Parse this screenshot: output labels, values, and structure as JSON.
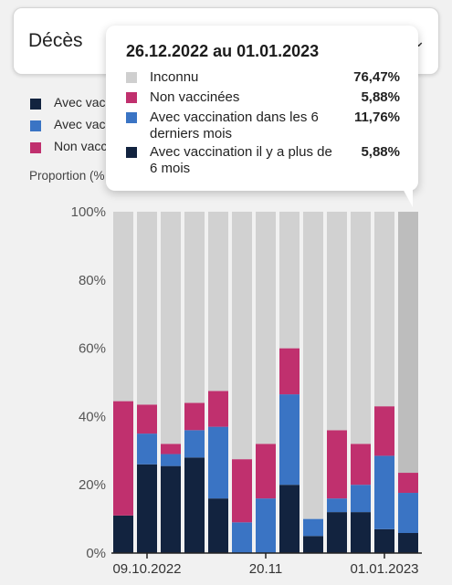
{
  "header": {
    "title": "Décès"
  },
  "legend": {
    "items": [
      {
        "label": "Avec vacci",
        "color": "#12233f"
      },
      {
        "label": "Avec vac",
        "color": "#3a74c4"
      },
      {
        "label": "Non vacc",
        "color": "#c0306e"
      }
    ],
    "proportion_label": "Proportion (%"
  },
  "tooltip": {
    "title": "26.12.2022 au 01.01.2023",
    "rows": [
      {
        "label": "Inconnu",
        "value": "76,47%",
        "color": "#cfcfcf"
      },
      {
        "label": "Non vaccinées",
        "value": "5,88%",
        "color": "#c0306e"
      },
      {
        "label": "Avec vaccination dans les 6 derniers mois",
        "value": "11,76%",
        "color": "#3a74c4"
      },
      {
        "label": "Avec vaccination il y a plus de 6 mois",
        "value": "5,88%",
        "color": "#12233f"
      }
    ]
  },
  "chart_data": {
    "type": "bar",
    "stacked": true,
    "ylim": [
      0,
      100
    ],
    "yticks": [
      "0%",
      "20%",
      "40%",
      "60%",
      "80%",
      "100%"
    ],
    "xtick_labels": [
      {
        "index": 1,
        "label": "09.10.2022"
      },
      {
        "index": 6,
        "label": "20.11"
      },
      {
        "index": 11,
        "label": "01.01.2023"
      }
    ],
    "highlighted_index": 13,
    "colors": {
      "old_vax": "#12233f",
      "recent_vax": "#3a74c4",
      "unvax": "#c0306e",
      "unknown": "#d1d1d1",
      "unknown_highlight": "#bdbdbd"
    },
    "series": [
      {
        "key": "old_vax",
        "values": [
          11,
          26,
          25.5,
          28,
          16,
          0,
          0,
          20,
          5,
          12,
          12,
          7,
          5.88
        ]
      },
      {
        "key": "recent_vax",
        "values": [
          0,
          9,
          3.5,
          8,
          21,
          9,
          16,
          26.5,
          5,
          4,
          8,
          21.5,
          11.76
        ]
      },
      {
        "key": "unvax",
        "values": [
          33.5,
          8.5,
          3,
          8,
          10.5,
          18.5,
          16,
          13.5,
          0,
          20,
          12,
          14.5,
          5.88
        ]
      },
      {
        "key": "unknown",
        "values": [
          55.5,
          56.5,
          68,
          56,
          52.5,
          72.5,
          68,
          40,
          90,
          64,
          68,
          57,
          76.47
        ]
      }
    ]
  }
}
